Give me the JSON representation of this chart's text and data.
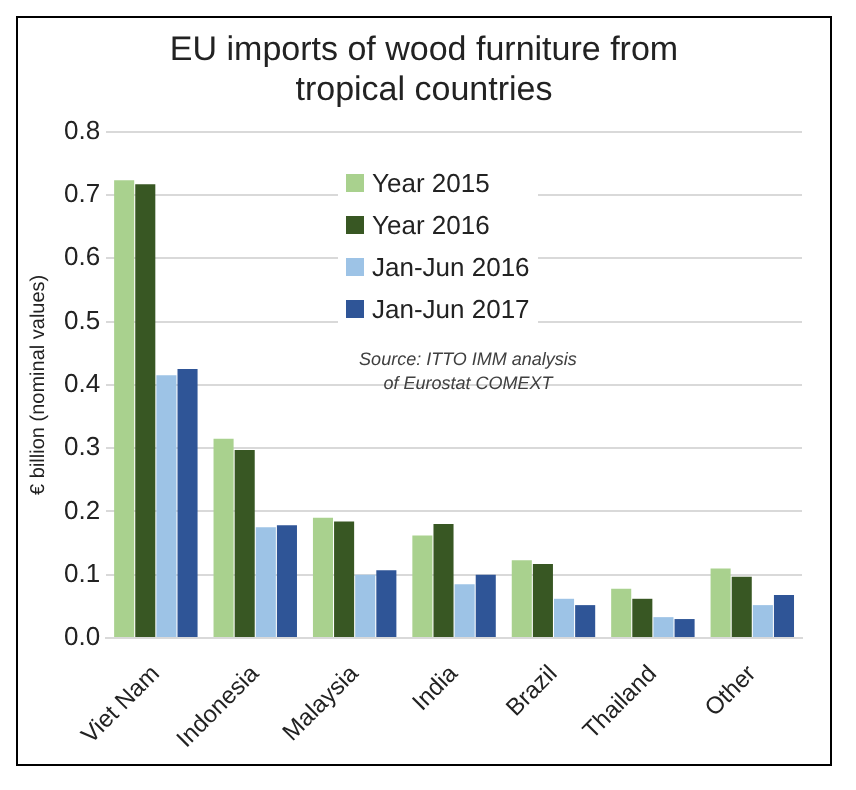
{
  "chart_data": {
    "type": "bar",
    "title": "EU imports of wood furniture from tropical countries",
    "ylabel": "€ billion (nominal values)",
    "categories": [
      "Viet Nam",
      "Indonesia",
      "Malaysia",
      "India",
      "Brazil",
      "Thailand",
      "Other"
    ],
    "series": [
      {
        "name": "Year 2015",
        "color": "#a9d18e",
        "values": [
          0.723,
          0.315,
          0.19,
          0.162,
          0.123,
          0.078,
          0.11
        ]
      },
      {
        "name": "Year 2016",
        "color": "#385723",
        "values": [
          0.717,
          0.297,
          0.184,
          0.18,
          0.117,
          0.062,
          0.097
        ]
      },
      {
        "name": "Jan-Jun 2016",
        "color": "#9dc3e6",
        "values": [
          0.415,
          0.175,
          0.1,
          0.085,
          0.062,
          0.033,
          0.052
        ]
      },
      {
        "name": "Jan-Jun 2017",
        "color": "#2f5597",
        "values": [
          0.425,
          0.178,
          0.107,
          0.1,
          0.052,
          0.03,
          0.068
        ]
      }
    ],
    "ylim": [
      0,
      0.8
    ],
    "yticks": [
      {
        "value": 0,
        "label": "0.0"
      },
      {
        "value": 0.1,
        "label": "0.1"
      },
      {
        "value": 0.2,
        "label": "0.2"
      },
      {
        "value": 0.3,
        "label": "0.3"
      },
      {
        "value": 0.4,
        "label": "0.4"
      },
      {
        "value": 0.5,
        "label": "0.5"
      },
      {
        "value": 0.6,
        "label": "0.6"
      },
      {
        "value": 0.7,
        "label": "0.7"
      },
      {
        "value": 0.8,
        "label": "0.8"
      }
    ],
    "grid": "y",
    "legend": "top right",
    "annotations": [
      "Source: ITTO IMM analysis",
      "of Eurostat COMEXT"
    ]
  }
}
